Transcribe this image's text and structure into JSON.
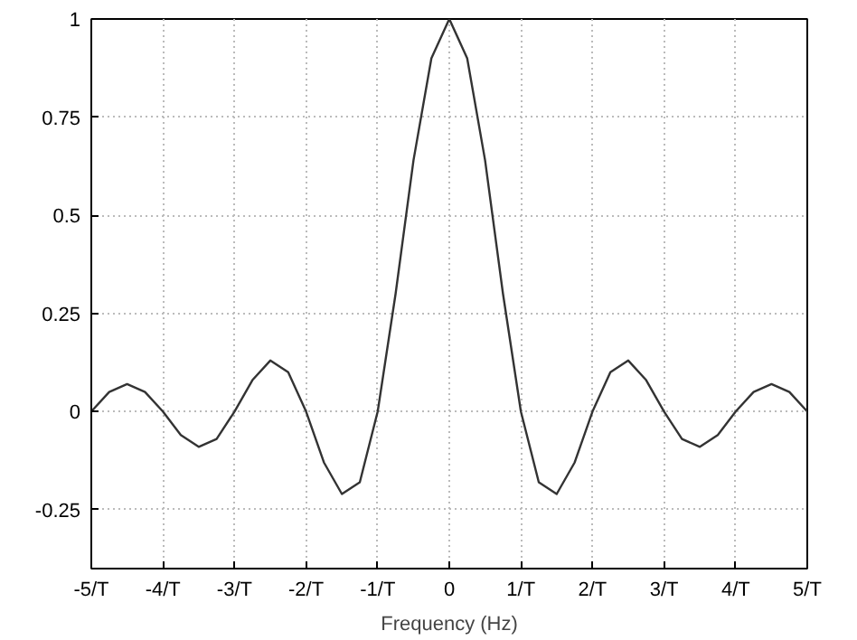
{
  "chart_data": {
    "type": "line",
    "xlabel": "Frequency (Hz)",
    "x": [
      -5,
      -4.75,
      -4.5,
      -4.25,
      -4,
      -3.75,
      -3.5,
      -3.25,
      -3,
      -2.75,
      -2.5,
      -2.25,
      -2,
      -1.75,
      -1.5,
      -1.25,
      -1,
      -0.75,
      -0.5,
      -0.25,
      0,
      0.25,
      0.5,
      0.75,
      1,
      1.25,
      1.5,
      1.75,
      2,
      2.25,
      2.5,
      2.75,
      3,
      3.25,
      3.5,
      3.75,
      4,
      4.25,
      4.5,
      4.75,
      5
    ],
    "series": [
      {
        "color": "#333333",
        "values": [
          0,
          0.05,
          0.07,
          0.05,
          0,
          -0.06,
          -0.09,
          -0.07,
          0,
          0.08,
          0.13,
          0.1,
          0,
          -0.13,
          -0.21,
          -0.18,
          0,
          0.3,
          0.64,
          0.9,
          1,
          0.9,
          0.64,
          0.3,
          0,
          -0.18,
          -0.21,
          -0.13,
          0,
          0.1,
          0.13,
          0.08,
          0,
          -0.07,
          -0.09,
          -0.06,
          0,
          0.05,
          0.07,
          0.05,
          0
        ]
      }
    ],
    "xlim": [
      -5,
      5
    ],
    "ylim": [
      -0.4,
      1
    ],
    "xticks": [
      {
        "value": -5,
        "label": "-5/T"
      },
      {
        "value": -4,
        "label": "-4/T"
      },
      {
        "value": -3,
        "label": "-3/T"
      },
      {
        "value": -2,
        "label": "-2/T"
      },
      {
        "value": -1,
        "label": "-1/T"
      },
      0,
      {
        "value": 1,
        "label": "1/T"
      },
      {
        "value": 2,
        "label": "2/T"
      },
      {
        "value": 3,
        "label": "3/T"
      },
      {
        "value": 4,
        "label": "4/T"
      },
      {
        "value": 5,
        "label": "5/T"
      }
    ],
    "yticks": [
      {
        "value": -0.25,
        "label": "-0.25"
      },
      0,
      {
        "value": 0.25,
        "label": "0.25"
      },
      {
        "value": 0.5,
        "label": "0.5"
      },
      {
        "value": 0.75,
        "label": "0.75"
      },
      1
    ],
    "grid": true,
    "line_style": "solid",
    "marker": "none"
  }
}
